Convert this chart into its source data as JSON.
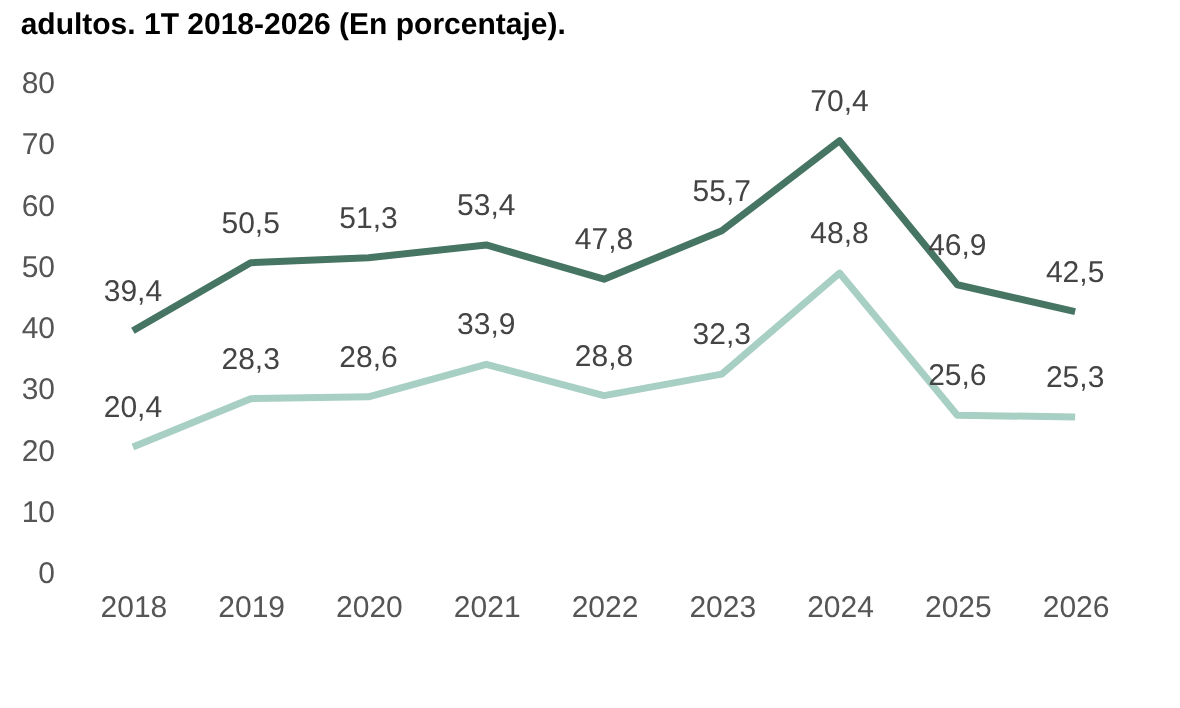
{
  "chart_data": {
    "type": "line",
    "title": "adultos. 1T 2018-2026 (En porcentaje).",
    "categories": [
      "2018",
      "2019",
      "2020",
      "2021",
      "2022",
      "2023",
      "2024",
      "2025",
      "2026"
    ],
    "series": [
      {
        "color": "#467563",
        "values": [
          39.4,
          50.5,
          51.3,
          53.4,
          47.8,
          55.7,
          70.4,
          46.9,
          42.5
        ],
        "value_labels": [
          "39,4",
          "50,5",
          "51,3",
          "53,4",
          "47,8",
          "55,7",
          "70,4",
          "46,9",
          "42,5"
        ]
      },
      {
        "color": "#a8cfc3",
        "values": [
          20.4,
          28.3,
          28.6,
          33.9,
          28.8,
          32.3,
          48.8,
          25.6,
          25.3
        ],
        "value_labels": [
          "20,4",
          "28,3",
          "28,6",
          "33,9",
          "28,8",
          "32,3",
          "48,8",
          "25,6",
          "25,3"
        ]
      }
    ],
    "ylim": [
      0,
      80
    ],
    "yticks": [
      0,
      10,
      20,
      30,
      40,
      50,
      60,
      70,
      80
    ]
  }
}
